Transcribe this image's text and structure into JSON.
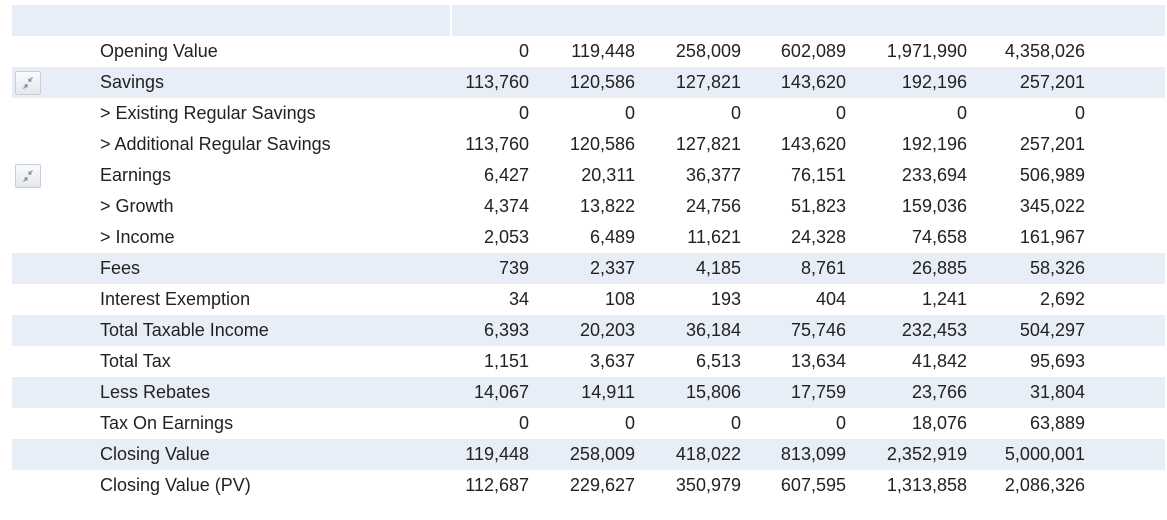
{
  "table": {
    "rows": [
      {
        "label": "Opening Value",
        "values": [
          "0",
          "119,448",
          "258,009",
          "602,089",
          "1,971,990",
          "4,358,026"
        ],
        "alt": false,
        "has_toggle": false
      },
      {
        "label": "Savings",
        "values": [
          "113,760",
          "120,586",
          "127,821",
          "143,620",
          "192,196",
          "257,201"
        ],
        "alt": true,
        "has_toggle": true
      },
      {
        "label": "> Existing Regular Savings",
        "values": [
          "0",
          "0",
          "0",
          "0",
          "0",
          "0"
        ],
        "alt": false,
        "has_toggle": false
      },
      {
        "label": "> Additional Regular Savings",
        "values": [
          "113,760",
          "120,586",
          "127,821",
          "143,620",
          "192,196",
          "257,201"
        ],
        "alt": false,
        "has_toggle": false
      },
      {
        "label": "Earnings",
        "values": [
          "6,427",
          "20,311",
          "36,377",
          "76,151",
          "233,694",
          "506,989"
        ],
        "alt": false,
        "has_toggle": true
      },
      {
        "label": "> Growth",
        "values": [
          "4,374",
          "13,822",
          "24,756",
          "51,823",
          "159,036",
          "345,022"
        ],
        "alt": false,
        "has_toggle": false
      },
      {
        "label": "> Income",
        "values": [
          "2,053",
          "6,489",
          "11,621",
          "24,328",
          "74,658",
          "161,967"
        ],
        "alt": false,
        "has_toggle": false
      },
      {
        "label": "Fees",
        "values": [
          "739",
          "2,337",
          "4,185",
          "8,761",
          "26,885",
          "58,326"
        ],
        "alt": true,
        "has_toggle": false
      },
      {
        "label": "Interest Exemption",
        "values": [
          "34",
          "108",
          "193",
          "404",
          "1,241",
          "2,692"
        ],
        "alt": false,
        "has_toggle": false
      },
      {
        "label": "Total Taxable Income",
        "values": [
          "6,393",
          "20,203",
          "36,184",
          "75,746",
          "232,453",
          "504,297"
        ],
        "alt": true,
        "has_toggle": false
      },
      {
        "label": "Total Tax",
        "values": [
          "1,151",
          "3,637",
          "6,513",
          "13,634",
          "41,842",
          "95,693"
        ],
        "alt": false,
        "has_toggle": false
      },
      {
        "label": "Less Rebates",
        "values": [
          "14,067",
          "14,911",
          "15,806",
          "17,759",
          "23,766",
          "31,804"
        ],
        "alt": true,
        "has_toggle": false
      },
      {
        "label": "Tax On Earnings",
        "values": [
          "0",
          "0",
          "0",
          "0",
          "18,076",
          "63,889"
        ],
        "alt": false,
        "has_toggle": false
      },
      {
        "label": "Closing Value",
        "values": [
          "119,448",
          "258,009",
          "418,022",
          "813,099",
          "2,352,919",
          "5,000,001"
        ],
        "alt": true,
        "has_toggle": false
      },
      {
        "label": "Closing Value (PV)",
        "values": [
          "112,687",
          "229,627",
          "350,979",
          "607,595",
          "1,313,858",
          "2,086,326"
        ],
        "alt": false,
        "has_toggle": false
      }
    ]
  },
  "icons": {
    "toggle": "collapse-arrows-icon"
  }
}
